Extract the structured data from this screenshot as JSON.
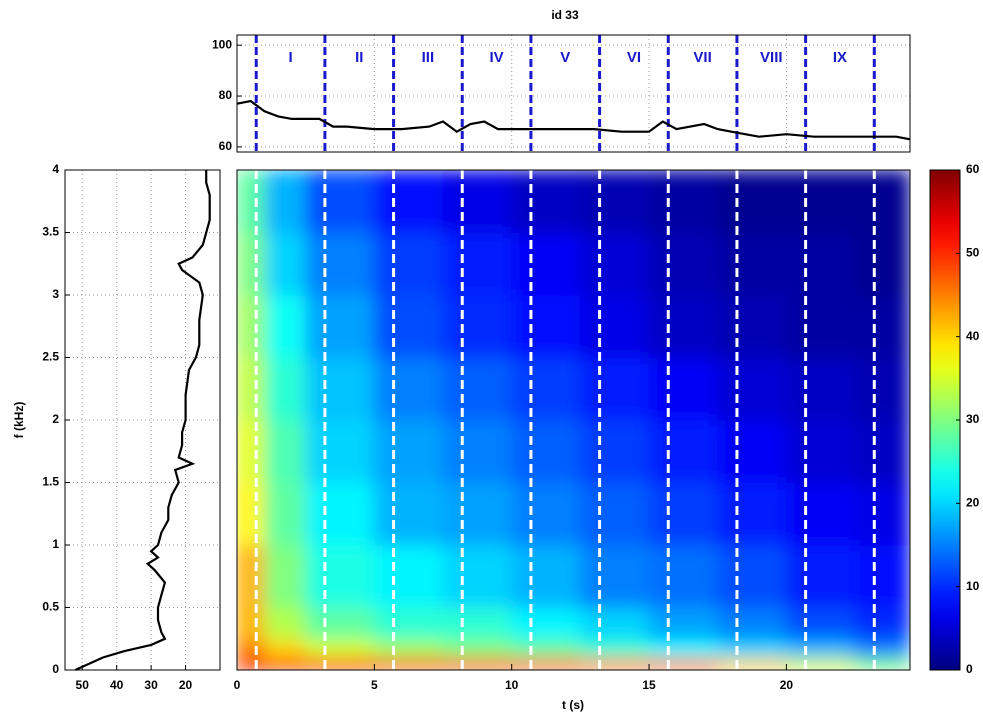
{
  "chart_data": [
    {
      "type": "line",
      "title": "id 33",
      "x": [
        0,
        0.5,
        1,
        1.5,
        2,
        2.5,
        3,
        3.5,
        4,
        5,
        6,
        7,
        7.5,
        8,
        8.5,
        9,
        9.5,
        10,
        11,
        12,
        13,
        14,
        15,
        15.5,
        16,
        17,
        17.5,
        18,
        19,
        20,
        21,
        22,
        23,
        24,
        24.5
      ],
      "values": [
        77,
        78,
        74,
        72,
        71,
        71,
        71,
        68,
        68,
        67,
        67,
        68,
        70,
        66,
        69,
        70,
        67,
        67,
        67,
        67,
        67,
        66,
        66,
        70,
        67,
        69,
        67,
        66,
        64,
        65,
        64,
        64,
        64,
        64,
        63
      ],
      "color": "#000000",
      "xlim": [
        0,
        24.5
      ],
      "xticks": [
        0,
        5,
        10,
        15,
        20
      ],
      "ylim": [
        58,
        104
      ],
      "yticks": [
        60,
        80,
        100
      ],
      "grid": true,
      "markers": [
        0.7,
        3.2,
        5.7,
        8.2,
        10.7,
        13.2,
        15.7,
        18.2,
        20.7,
        23.2
      ],
      "marker_color": "#1a1acc",
      "region_labels": [
        "I",
        "II",
        "III",
        "IV",
        "V",
        "VI",
        "VII",
        "VIII",
        "IX"
      ]
    },
    {
      "type": "profile",
      "ylabel": "f (kHz)",
      "y": [
        0,
        0.05,
        0.1,
        0.15,
        0.2,
        0.25,
        0.3,
        0.4,
        0.5,
        0.6,
        0.7,
        0.8,
        0.85,
        0.9,
        0.95,
        1.0,
        1.1,
        1.2,
        1.3,
        1.4,
        1.5,
        1.6,
        1.65,
        1.7,
        1.8,
        1.9,
        2.0,
        2.2,
        2.4,
        2.5,
        2.6,
        2.8,
        3.0,
        3.1,
        3.2,
        3.25,
        3.3,
        3.4,
        3.6,
        3.8,
        3.9,
        4.0
      ],
      "values": [
        52,
        48,
        44,
        38,
        30,
        26,
        27,
        28,
        28,
        27,
        26,
        29,
        31,
        28,
        30,
        28,
        27,
        25,
        25,
        24,
        22,
        23,
        18,
        22,
        21,
        21,
        20,
        20,
        19,
        17,
        16,
        16,
        15,
        16,
        21,
        22,
        18,
        15,
        13,
        13,
        14,
        14
      ],
      "color": "#000000",
      "xlim": [
        55,
        10
      ],
      "xticks": [
        50,
        40,
        30,
        20
      ],
      "ylim": [
        0,
        4
      ],
      "yticks": [
        0,
        0.5,
        1,
        1.5,
        2,
        2.5,
        3,
        3.5,
        4
      ],
      "grid": true
    },
    {
      "type": "heatmap",
      "xlabel": "t (s)",
      "colormap": "jet",
      "x_bins": [
        0,
        1,
        2.5,
        5,
        7.5,
        10,
        12.5,
        15,
        17.5,
        20,
        22.5,
        24.5
      ],
      "y_bins": [
        0,
        0.1,
        0.25,
        0.5,
        1,
        1.5,
        2,
        2.5,
        3,
        3.5,
        4
      ],
      "values": [
        [
          52,
          50,
          50,
          48,
          48,
          47,
          45,
          45,
          40,
          35,
          30
        ],
        [
          45,
          40,
          35,
          32,
          30,
          28,
          25,
          22,
          20,
          18,
          15
        ],
        [
          42,
          33,
          28,
          25,
          25,
          22,
          20,
          17,
          15,
          12,
          10
        ],
        [
          42,
          30,
          24,
          22,
          20,
          18,
          15,
          14,
          12,
          9,
          8
        ],
        [
          38,
          28,
          22,
          18,
          17,
          15,
          13,
          11,
          9,
          7,
          6
        ],
        [
          36,
          27,
          20,
          17,
          15,
          13,
          11,
          9,
          7,
          5,
          4
        ],
        [
          34,
          25,
          19,
          15,
          13,
          11,
          9,
          7,
          5,
          4,
          3
        ],
        [
          32,
          23,
          17,
          12,
          10,
          8,
          6,
          4,
          3,
          2,
          2
        ],
        [
          30,
          20,
          15,
          11,
          9,
          7,
          5,
          3,
          2,
          2,
          1
        ],
        [
          28,
          18,
          12,
          8,
          6,
          4,
          3,
          2,
          1,
          1,
          1
        ]
      ],
      "xlim": [
        0,
        24.5
      ],
      "xticks": [
        0,
        5,
        10,
        15,
        20
      ],
      "ylim": [
        0,
        4
      ],
      "clim": [
        0,
        60
      ],
      "cticks": [
        0,
        10,
        20,
        30,
        40,
        50,
        60
      ],
      "marker_color": "#ffffff"
    }
  ]
}
